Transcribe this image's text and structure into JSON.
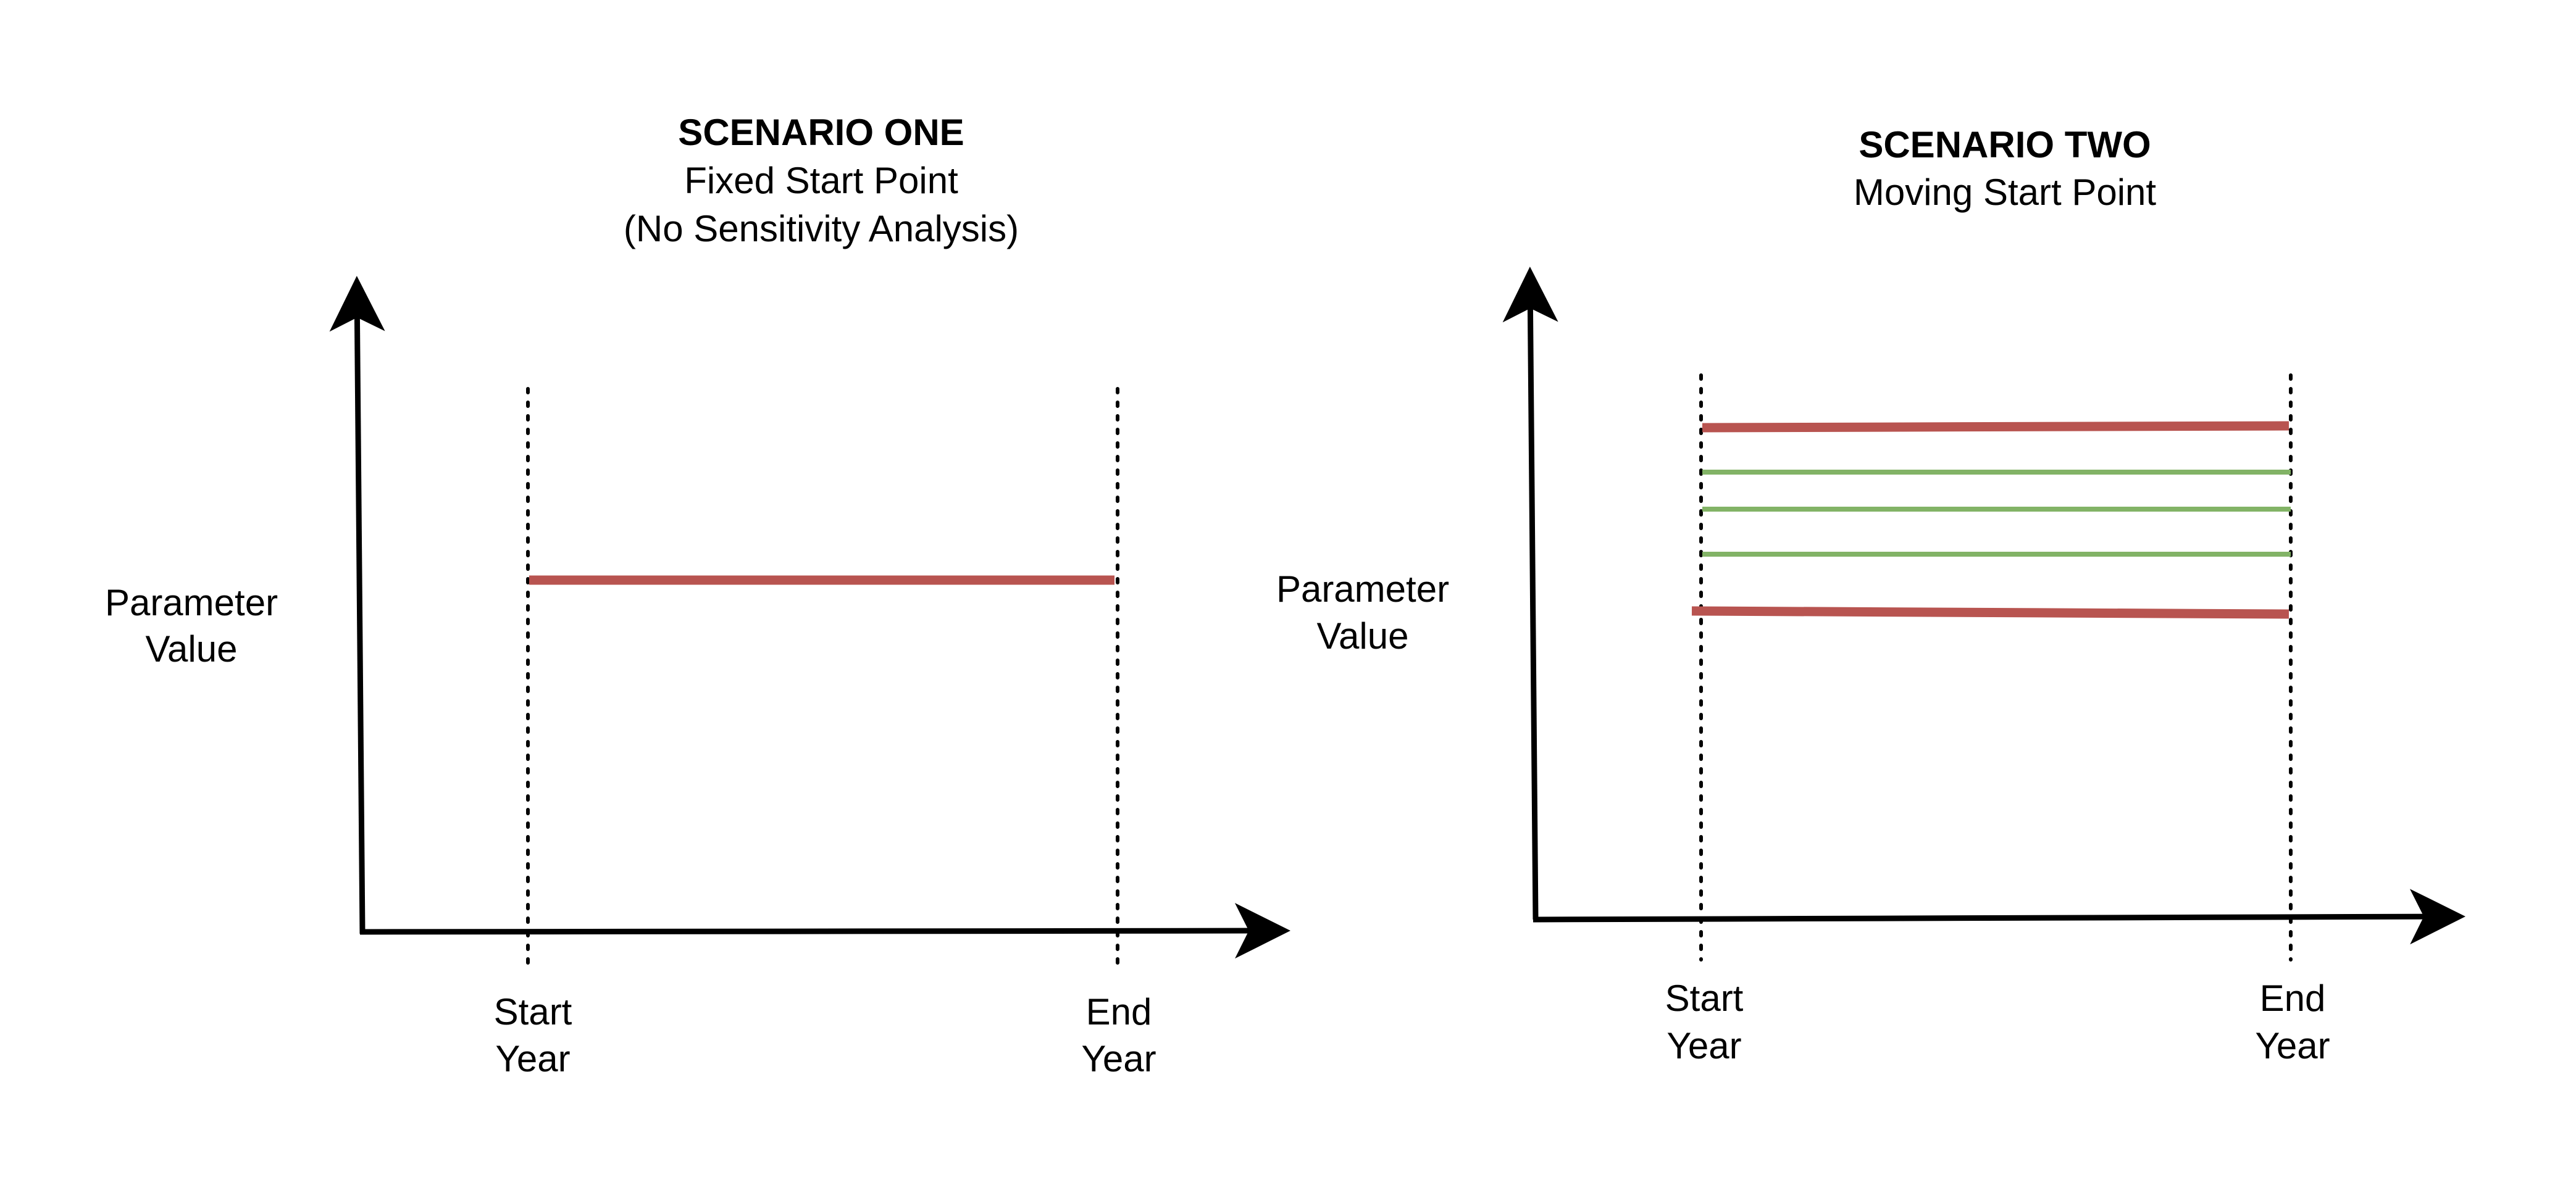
{
  "colors": {
    "axis": "#000000",
    "red_line": "#b85450",
    "green_line": "#82b366",
    "guide": "#000000"
  },
  "scenario_one": {
    "title": "SCENARIO ONE",
    "subtitle_1": "Fixed Start Point",
    "subtitle_2": "(No Sensitivity Analysis)",
    "y_label_1": "Parameter",
    "y_label_2": "Value",
    "start_label_1": "Start",
    "start_label_2": "Year",
    "end_label_1": "End",
    "end_label_2": "Year"
  },
  "scenario_two": {
    "title": "SCENARIO TWO",
    "subtitle_1": "Moving Start Point",
    "y_label_1": "Parameter",
    "y_label_2": "Value",
    "start_label_1": "Start",
    "start_label_2": "Year",
    "end_label_1": "End",
    "end_label_2": "Year"
  }
}
